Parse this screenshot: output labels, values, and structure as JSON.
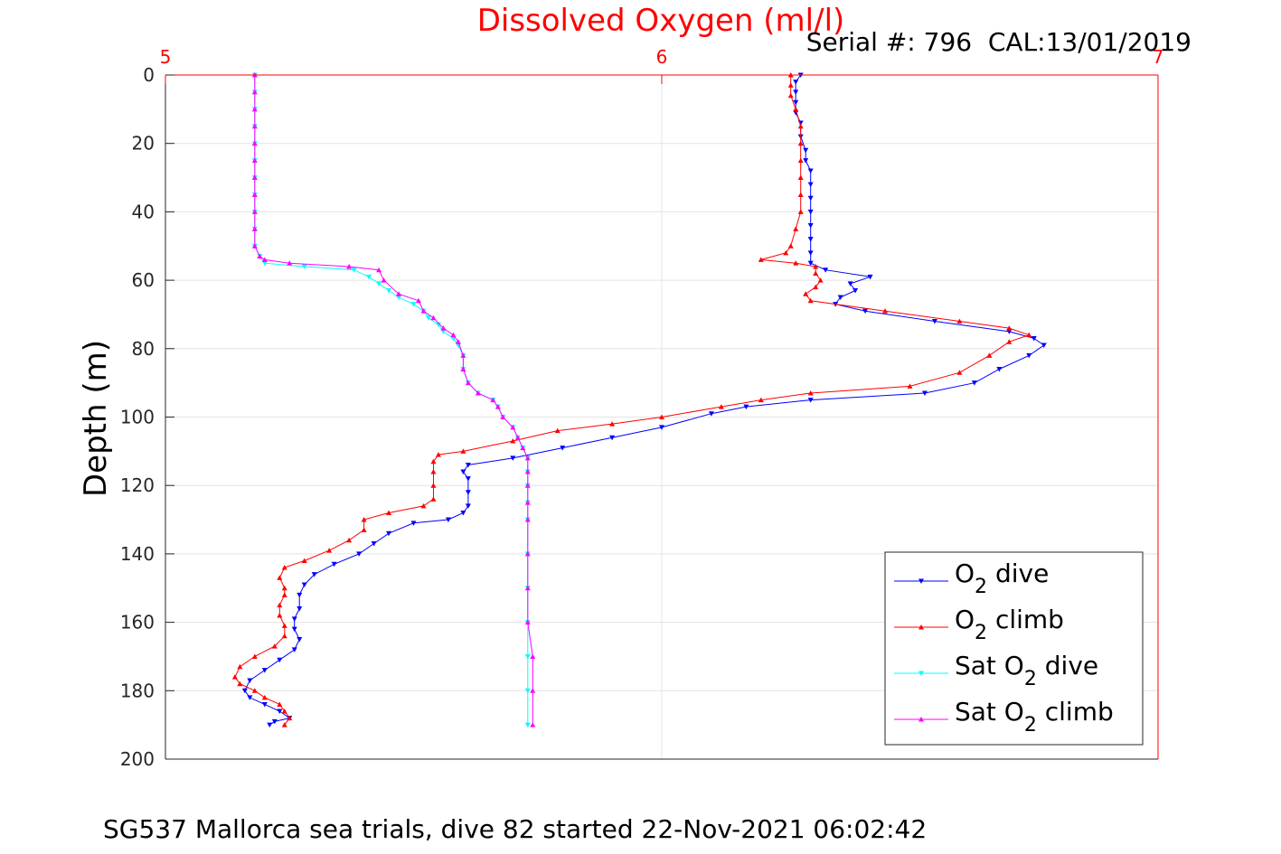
{
  "chart_data": {
    "type": "line",
    "title": "Dissolved Oxygen (ml/l)",
    "subtitle": "Serial #: 796  CAL:13/01/2019",
    "caption": "SG537 Mallorca sea trials, dive 82 started 22-Nov-2021 06:02:42",
    "xlabel": "Dissolved Oxygen (ml/l)",
    "ylabel": "Depth (m)",
    "xlim": [
      5,
      7
    ],
    "ylim": [
      0,
      200
    ],
    "y_reversed": true,
    "x_axis_position": "top",
    "xticks": [
      "5",
      "6",
      "7"
    ],
    "yticks": [
      "0",
      "20",
      "40",
      "60",
      "80",
      "100",
      "120",
      "140",
      "160",
      "180",
      "200"
    ],
    "grid": true,
    "legend_location": "bottom-right",
    "colors": {
      "title": "#ff0000",
      "x_axis": "#ff0000",
      "grid": "#e3e3e3"
    },
    "series": [
      {
        "name": "O₂ dive",
        "legend_text": "O",
        "legend_sub": "2",
        "legend_suffix": " dive",
        "color": "#0000ff",
        "marker": "triangle-down",
        "points": [
          [
            6.28,
            0
          ],
          [
            6.27,
            2
          ],
          [
            6.27,
            5
          ],
          [
            6.27,
            8
          ],
          [
            6.27,
            11
          ],
          [
            6.28,
            14
          ],
          [
            6.28,
            18
          ],
          [
            6.29,
            22
          ],
          [
            6.29,
            25
          ],
          [
            6.3,
            28
          ],
          [
            6.3,
            32
          ],
          [
            6.3,
            36
          ],
          [
            6.3,
            40
          ],
          [
            6.3,
            44
          ],
          [
            6.3,
            48
          ],
          [
            6.3,
            52
          ],
          [
            6.3,
            55
          ],
          [
            6.33,
            57
          ],
          [
            6.42,
            59
          ],
          [
            6.38,
            61
          ],
          [
            6.39,
            63
          ],
          [
            6.36,
            65
          ],
          [
            6.35,
            67
          ],
          [
            6.41,
            69
          ],
          [
            6.55,
            72
          ],
          [
            6.7,
            75
          ],
          [
            6.75,
            77
          ],
          [
            6.77,
            79
          ],
          [
            6.74,
            82
          ],
          [
            6.68,
            86
          ],
          [
            6.63,
            90
          ],
          [
            6.53,
            93
          ],
          [
            6.3,
            95
          ],
          [
            6.17,
            97
          ],
          [
            6.1,
            99
          ],
          [
            6.0,
            103
          ],
          [
            5.9,
            106
          ],
          [
            5.8,
            109
          ],
          [
            5.7,
            112
          ],
          [
            5.61,
            114
          ],
          [
            5.6,
            116
          ],
          [
            5.61,
            118
          ],
          [
            5.61,
            122
          ],
          [
            5.61,
            126
          ],
          [
            5.6,
            128
          ],
          [
            5.57,
            130
          ],
          [
            5.5,
            131
          ],
          [
            5.45,
            134
          ],
          [
            5.42,
            137
          ],
          [
            5.39,
            140
          ],
          [
            5.34,
            143
          ],
          [
            5.3,
            146
          ],
          [
            5.28,
            149
          ],
          [
            5.27,
            152
          ],
          [
            5.27,
            156
          ],
          [
            5.26,
            159
          ],
          [
            5.26,
            162
          ],
          [
            5.27,
            165
          ],
          [
            5.26,
            168
          ],
          [
            5.23,
            171
          ],
          [
            5.2,
            174
          ],
          [
            5.17,
            177
          ],
          [
            5.16,
            180
          ],
          [
            5.17,
            182
          ],
          [
            5.2,
            184
          ],
          [
            5.23,
            186
          ],
          [
            5.25,
            188
          ],
          [
            5.22,
            189
          ],
          [
            5.21,
            190
          ]
        ]
      },
      {
        "name": "O₂ climb",
        "legend_text": "O",
        "legend_sub": "2",
        "legend_suffix": " climb",
        "color": "#ff0000",
        "marker": "triangle-up",
        "points": [
          [
            6.26,
            0
          ],
          [
            6.26,
            3
          ],
          [
            6.26,
            6
          ],
          [
            6.27,
            10
          ],
          [
            6.28,
            15
          ],
          [
            6.28,
            20
          ],
          [
            6.28,
            25
          ],
          [
            6.28,
            30
          ],
          [
            6.28,
            35
          ],
          [
            6.28,
            40
          ],
          [
            6.27,
            45
          ],
          [
            6.26,
            50
          ],
          [
            6.25,
            52
          ],
          [
            6.2,
            54
          ],
          [
            6.27,
            55
          ],
          [
            6.31,
            56
          ],
          [
            6.31,
            58
          ],
          [
            6.32,
            60
          ],
          [
            6.31,
            62
          ],
          [
            6.29,
            64
          ],
          [
            6.3,
            66
          ],
          [
            6.45,
            69
          ],
          [
            6.6,
            72
          ],
          [
            6.7,
            74
          ],
          [
            6.74,
            76
          ],
          [
            6.7,
            78
          ],
          [
            6.66,
            82
          ],
          [
            6.6,
            87
          ],
          [
            6.5,
            91
          ],
          [
            6.3,
            93
          ],
          [
            6.2,
            95
          ],
          [
            6.12,
            97
          ],
          [
            6.0,
            100
          ],
          [
            5.9,
            102
          ],
          [
            5.79,
            104
          ],
          [
            5.7,
            107
          ],
          [
            5.6,
            110
          ],
          [
            5.55,
            111
          ],
          [
            5.54,
            113
          ],
          [
            5.54,
            116
          ],
          [
            5.54,
            120
          ],
          [
            5.54,
            124
          ],
          [
            5.52,
            126
          ],
          [
            5.45,
            128
          ],
          [
            5.4,
            130
          ],
          [
            5.4,
            133
          ],
          [
            5.37,
            136
          ],
          [
            5.33,
            139
          ],
          [
            5.28,
            142
          ],
          [
            5.24,
            144
          ],
          [
            5.23,
            147
          ],
          [
            5.24,
            150
          ],
          [
            5.24,
            152
          ],
          [
            5.23,
            155
          ],
          [
            5.23,
            158
          ],
          [
            5.24,
            161
          ],
          [
            5.24,
            164
          ],
          [
            5.22,
            167
          ],
          [
            5.18,
            170
          ],
          [
            5.15,
            173
          ],
          [
            5.14,
            176
          ],
          [
            5.15,
            178
          ],
          [
            5.18,
            180
          ],
          [
            5.2,
            182
          ],
          [
            5.23,
            184
          ],
          [
            5.24,
            186
          ],
          [
            5.25,
            188
          ],
          [
            5.24,
            190
          ]
        ]
      },
      {
        "name": "Sat O₂ dive",
        "legend_text": "Sat O",
        "legend_sub": "2",
        "legend_suffix": " dive",
        "color": "#00ffff",
        "marker": "triangle-down",
        "points": [
          [
            5.18,
            0
          ],
          [
            5.18,
            5
          ],
          [
            5.18,
            10
          ],
          [
            5.18,
            15
          ],
          [
            5.18,
            20
          ],
          [
            5.18,
            25
          ],
          [
            5.18,
            30
          ],
          [
            5.18,
            35
          ],
          [
            5.18,
            40
          ],
          [
            5.18,
            45
          ],
          [
            5.18,
            50
          ],
          [
            5.19,
            53
          ],
          [
            5.2,
            55
          ],
          [
            5.28,
            56
          ],
          [
            5.38,
            57
          ],
          [
            5.41,
            59
          ],
          [
            5.43,
            61
          ],
          [
            5.45,
            63
          ],
          [
            5.47,
            65
          ],
          [
            5.5,
            67
          ],
          [
            5.52,
            69
          ],
          [
            5.53,
            71
          ],
          [
            5.55,
            73
          ],
          [
            5.56,
            75
          ],
          [
            5.58,
            77
          ],
          [
            5.59,
            79
          ],
          [
            5.6,
            82
          ],
          [
            5.6,
            86
          ],
          [
            5.61,
            90
          ],
          [
            5.63,
            93
          ],
          [
            5.66,
            95
          ],
          [
            5.67,
            97
          ],
          [
            5.68,
            100
          ],
          [
            5.7,
            103
          ],
          [
            5.71,
            106
          ],
          [
            5.72,
            109
          ],
          [
            5.73,
            112
          ],
          [
            5.73,
            116
          ],
          [
            5.73,
            120
          ],
          [
            5.73,
            125
          ],
          [
            5.73,
            130
          ],
          [
            5.73,
            140
          ],
          [
            5.73,
            150
          ],
          [
            5.73,
            160
          ],
          [
            5.73,
            170
          ],
          [
            5.73,
            180
          ],
          [
            5.73,
            190
          ]
        ]
      },
      {
        "name": "Sat O₂ climb",
        "legend_text": "Sat O",
        "legend_sub": "2",
        "legend_suffix": " climb",
        "color": "#ff00ff",
        "marker": "triangle-up",
        "points": [
          [
            5.18,
            0
          ],
          [
            5.18,
            5
          ],
          [
            5.18,
            10
          ],
          [
            5.18,
            15
          ],
          [
            5.18,
            20
          ],
          [
            5.18,
            25
          ],
          [
            5.18,
            30
          ],
          [
            5.18,
            35
          ],
          [
            5.18,
            40
          ],
          [
            5.18,
            45
          ],
          [
            5.18,
            50
          ],
          [
            5.19,
            53
          ],
          [
            5.2,
            54
          ],
          [
            5.25,
            55
          ],
          [
            5.37,
            56
          ],
          [
            5.43,
            57
          ],
          [
            5.44,
            60
          ],
          [
            5.47,
            64
          ],
          [
            5.51,
            66
          ],
          [
            5.52,
            69
          ],
          [
            5.54,
            71
          ],
          [
            5.56,
            74
          ],
          [
            5.58,
            76
          ],
          [
            5.59,
            78
          ],
          [
            5.6,
            82
          ],
          [
            5.6,
            86
          ],
          [
            5.61,
            90
          ],
          [
            5.63,
            93
          ],
          [
            5.66,
            95
          ],
          [
            5.67,
            97
          ],
          [
            5.68,
            100
          ],
          [
            5.7,
            103
          ],
          [
            5.71,
            106
          ],
          [
            5.72,
            109
          ],
          [
            5.73,
            112
          ],
          [
            5.73,
            116
          ],
          [
            5.73,
            120
          ],
          [
            5.73,
            125
          ],
          [
            5.73,
            130
          ],
          [
            5.73,
            140
          ],
          [
            5.73,
            150
          ],
          [
            5.73,
            160
          ],
          [
            5.74,
            170
          ],
          [
            5.74,
            180
          ],
          [
            5.74,
            190
          ]
        ]
      }
    ]
  }
}
